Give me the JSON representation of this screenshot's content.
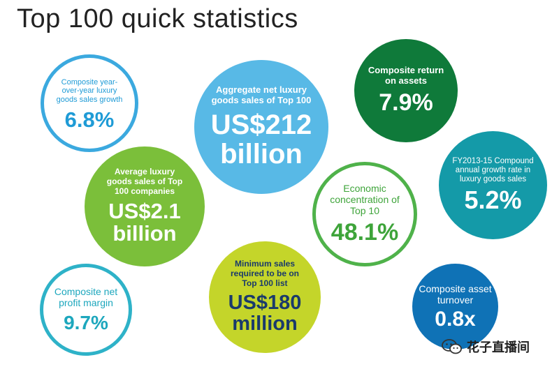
{
  "title": "Top 100 quick statistics",
  "stats": {
    "growth": {
      "label": "Composite year-over-year luxury goods sales growth",
      "value": "6.8%",
      "color": "#3ba9df"
    },
    "aggregate": {
      "label": "Aggregate net luxury goods sales of Top 100",
      "value_line1": "US$212",
      "value_line2": "billion",
      "color": "#58b9e6"
    },
    "return_on_assets": {
      "label": "Composite return on assets",
      "value": "7.9%",
      "color": "#0f7a3a"
    },
    "cagr": {
      "label": "FY2013-15 Compound annual growth rate in luxury goods sales",
      "value": "5.2%",
      "color": "#149aa8"
    },
    "average_sales": {
      "label": "Average luxury goods sales of Top 100 companies",
      "value_line1": "US$2.1",
      "value_line2": "billion",
      "color": "#7bbf3a"
    },
    "concentration": {
      "label": "Economic concentration of Top 10",
      "value": "48.1%",
      "color": "#4fb24a"
    },
    "net_profit": {
      "label": "Composite net profit margin",
      "value": "9.7%",
      "color": "#2eb2c8"
    },
    "minimum_sales": {
      "label": "Minimum sales required to be on Top 100 list",
      "value_line1": "US$180",
      "value_line2": "million",
      "color": "#c4d52a"
    },
    "asset_turnover": {
      "label": "Composite asset turnover",
      "value": "0.8x",
      "color": "#0f72b6"
    }
  },
  "watermark": {
    "icon": "wechat-icon",
    "text": "花子直播间"
  }
}
